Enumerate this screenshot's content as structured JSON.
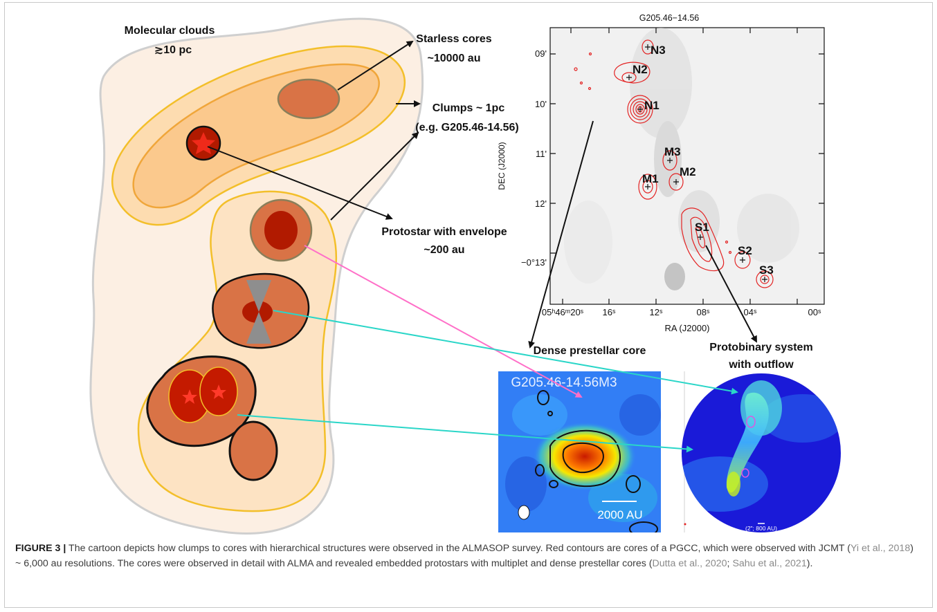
{
  "cartoon": {
    "molecular_clouds": {
      "line1": "Molecular clouds",
      "line2": "≳10 pc"
    },
    "starless_cores": {
      "line1": "Starless cores",
      "line2": "~10000 au"
    },
    "clumps": {
      "line1": "Clumps ~ 1pc",
      "line2": "(e.g. G205.46-14.56)"
    },
    "protostar": {
      "line1": "Protostar with envelope",
      "line2": "~200 au"
    }
  },
  "map": {
    "title": "G205.46−14.56",
    "ylabel": "DEC (J2000)",
    "xlabel": "RA (J2000)",
    "yticks": [
      "09'",
      "10'",
      "11'",
      "12'",
      "−0°13'"
    ],
    "xticks": [
      "05ʰ46ᵐ20ˢ",
      "16ˢ",
      "12ˢ",
      "08ˢ",
      "04ˢ",
      "00ˢ"
    ],
    "sources": [
      "N3",
      "N2",
      "N1",
      "M3",
      "M2",
      "M1",
      "S1",
      "S2",
      "S3"
    ]
  },
  "panels": {
    "prestellar": {
      "heading": "Dense prestellar core",
      "inset_title": "G205.46-14.56M3",
      "scale": "2000 AU"
    },
    "protobinary": {
      "heading_line1": "Protobinary system",
      "heading_line2": "with outflow",
      "scale": "(2\"; 800 AU)"
    }
  },
  "caption": {
    "label": "FIGURE 3 |",
    "text1": " The cartoon depicts how clumps to cores with hierarchical structures were observed in the ALMASOP survey. Red contours are cores of a PGCC, which were observed with JCMT (",
    "ref1": "Yi et al., 2018",
    "text2": ") ~ 6,000 au resolutions. The cores were observed in detail with ALMA and revealed embedded protostars with multiplet and dense prestellar cores (",
    "ref2": "Dutta et al., 2020",
    "text3": "; ",
    "ref3": "Sahu et al., 2021",
    "text4": ")."
  }
}
